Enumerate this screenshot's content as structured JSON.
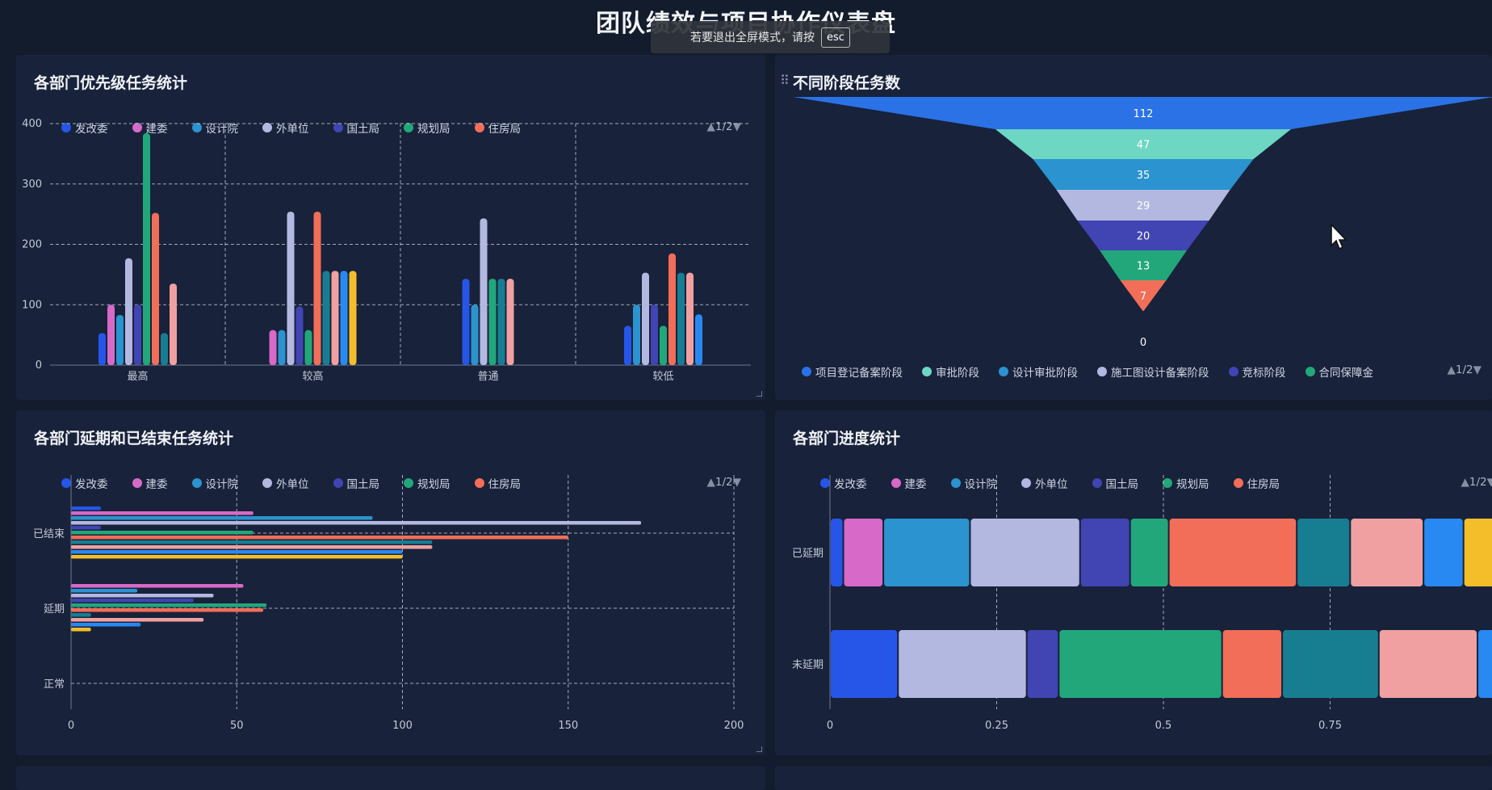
{
  "page": {
    "title": "团队绩效与项目协作仪表盘"
  },
  "fullscreen_notice": {
    "text": "若要退出全屏模式，请按",
    "key": "esc"
  },
  "colors": {
    "发改委": "#2556e8",
    "建委": "#d769c8",
    "设计院": "#2b93cf",
    "外单位": "#b3b8e0",
    "国土局": "#4144b3",
    "规划局": "#22a77a",
    "住房局": "#f26e58",
    "teal": "#177e92",
    "pink": "#f0a0a0",
    "blue": "#2989f2",
    "yellow": "#f4bd2a"
  },
  "legend_items": [
    {
      "label": "发改委",
      "color": "#2556e8"
    },
    {
      "label": "建委",
      "color": "#d769c8"
    },
    {
      "label": "设计院",
      "color": "#2b93cf"
    },
    {
      "label": "外单位",
      "color": "#b3b8e0"
    },
    {
      "label": "国土局",
      "color": "#4144b3"
    },
    {
      "label": "规划局",
      "color": "#22a77a"
    },
    {
      "label": "住房局",
      "color": "#f26e58"
    }
  ],
  "panels": {
    "priority": {
      "title": "各部门优先级任务统计",
      "pager": "1/2"
    },
    "funnel": {
      "title": "不同阶段任务数",
      "pager": "1/2",
      "legend": [
        {
          "label": "项目登记备案阶段",
          "color": "#2b72e6"
        },
        {
          "label": "审批阶段",
          "color": "#6dd7c4"
        },
        {
          "label": "设计审批阶段",
          "color": "#2b93cf"
        },
        {
          "label": "施工图设计备案阶段",
          "color": "#b3b8e0"
        },
        {
          "label": "竞标阶段",
          "color": "#4144b3"
        },
        {
          "label": "合同保障金",
          "color": "#22a77a"
        }
      ]
    },
    "delay": {
      "title": "各部门延期和已结束任务统计",
      "pager": "1/2"
    },
    "progress": {
      "title": "各部门进度统计",
      "pager": "1/2"
    }
  },
  "chart_data": [
    {
      "id": "priority",
      "type": "bar",
      "categories": [
        "最高",
        "较高",
        "普通",
        "较低"
      ],
      "ylim": [
        0,
        400
      ],
      "yticks": [
        0,
        100,
        200,
        300,
        400
      ],
      "grid": true,
      "legend_position": "top",
      "groups": [
        {
          "category": "最高",
          "bars": [
            {
              "color": "#2556e8",
              "value": 53
            },
            {
              "color": "#d769c8",
              "value": 100
            },
            {
              "color": "#2b93cf",
              "value": 83
            },
            {
              "color": "#b3b8e0",
              "value": 177
            },
            {
              "color": "#4144b3",
              "value": 100
            },
            {
              "color": "#22a77a",
              "value": 384
            },
            {
              "color": "#f26e58",
              "value": 252
            },
            {
              "color": "#177e92",
              "value": 53
            },
            {
              "color": "#f0a0a0",
              "value": 135
            }
          ]
        },
        {
          "category": "较高",
          "bars": [
            {
              "color": "#d769c8",
              "value": 58
            },
            {
              "color": "#2b93cf",
              "value": 58
            },
            {
              "color": "#b3b8e0",
              "value": 254
            },
            {
              "color": "#4144b3",
              "value": 97
            },
            {
              "color": "#22a77a",
              "value": 58
            },
            {
              "color": "#f26e58",
              "value": 254
            },
            {
              "color": "#177e92",
              "value": 156
            },
            {
              "color": "#f0a0a0",
              "value": 156
            },
            {
              "color": "#2989f2",
              "value": 156
            },
            {
              "color": "#f4bd2a",
              "value": 156
            }
          ]
        },
        {
          "category": "普通",
          "bars": [
            {
              "color": "#2556e8",
              "value": 143
            },
            {
              "color": "#2b93cf",
              "value": 100
            },
            {
              "color": "#b3b8e0",
              "value": 243
            },
            {
              "color": "#22a77a",
              "value": 143
            },
            {
              "color": "#177e92",
              "value": 143
            },
            {
              "color": "#f0a0a0",
              "value": 143
            }
          ]
        },
        {
          "category": "较低",
          "bars": [
            {
              "color": "#2556e8",
              "value": 65
            },
            {
              "color": "#2b93cf",
              "value": 100
            },
            {
              "color": "#b3b8e0",
              "value": 153
            },
            {
              "color": "#4144b3",
              "value": 100
            },
            {
              "color": "#22a77a",
              "value": 65
            },
            {
              "color": "#f26e58",
              "value": 185
            },
            {
              "color": "#177e92",
              "value": 153
            },
            {
              "color": "#f0a0a0",
              "value": 153
            },
            {
              "color": "#2989f2",
              "value": 84
            }
          ]
        }
      ]
    },
    {
      "id": "funnel",
      "type": "funnel",
      "values": [
        112,
        47,
        35,
        29,
        20,
        13,
        7,
        0
      ],
      "stage_colors": [
        "#2b72e6",
        "#6dd7c4",
        "#2b93cf",
        "#b3b8e0",
        "#4144b3",
        "#22a77a",
        "#f26e58"
      ]
    },
    {
      "id": "delay",
      "type": "bar",
      "orientation": "horizontal",
      "categories": [
        "已结束",
        "延期",
        "正常"
      ],
      "xlim": [
        0,
        200
      ],
      "xticks": [
        0,
        50,
        100,
        150,
        200
      ],
      "grid": true,
      "groups": [
        {
          "category": "已结束",
          "bars": [
            {
              "color": "#2556e8",
              "value": 9
            },
            {
              "color": "#d769c8",
              "value": 55
            },
            {
              "color": "#2b93cf",
              "value": 91
            },
            {
              "color": "#b3b8e0",
              "value": 172
            },
            {
              "color": "#4144b3",
              "value": 9
            },
            {
              "color": "#22a77a",
              "value": 55
            },
            {
              "color": "#f26e58",
              "value": 150
            },
            {
              "color": "#177e92",
              "value": 109
            },
            {
              "color": "#f0a0a0",
              "value": 109
            },
            {
              "color": "#2989f2",
              "value": 100
            },
            {
              "color": "#f4bd2a",
              "value": 100
            }
          ]
        },
        {
          "category": "延期",
          "bars": [
            {
              "color": "#d769c8",
              "value": 52
            },
            {
              "color": "#2b93cf",
              "value": 20
            },
            {
              "color": "#b3b8e0",
              "value": 43
            },
            {
              "color": "#4144b3",
              "value": 37
            },
            {
              "color": "#22a77a",
              "value": 59
            },
            {
              "color": "#f26e58",
              "value": 58
            },
            {
              "color": "#177e92",
              "value": 6
            },
            {
              "color": "#f0a0a0",
              "value": 40
            },
            {
              "color": "#2989f2",
              "value": 21
            },
            {
              "color": "#f4bd2a",
              "value": 6
            }
          ]
        },
        {
          "category": "正常",
          "bars": []
        }
      ]
    },
    {
      "id": "progress",
      "type": "bar",
      "orientation": "horizontal",
      "stacked": "percent",
      "categories": [
        "已延期",
        "未延期"
      ],
      "xticks": [
        "0",
        "0.25",
        "0.5",
        "0.75"
      ],
      "grid": true,
      "rows": [
        {
          "category": "已延期",
          "segments": [
            {
              "color": "#2556e8",
              "value": 0.02
            },
            {
              "color": "#d769c8",
              "value": 0.06
            },
            {
              "color": "#2b93cf",
              "value": 0.13
            },
            {
              "color": "#b3b8e0",
              "value": 0.165
            },
            {
              "color": "#4144b3",
              "value": 0.075
            },
            {
              "color": "#22a77a",
              "value": 0.058
            },
            {
              "color": "#f26e58",
              "value": 0.192
            },
            {
              "color": "#177e92",
              "value": 0.08
            },
            {
              "color": "#f0a0a0",
              "value": 0.11
            },
            {
              "color": "#2989f2",
              "value": 0.06
            },
            {
              "color": "#f4bd2a",
              "value": 0.05
            }
          ]
        },
        {
          "category": "未延期",
          "segments": [
            {
              "color": "#2556e8",
              "value": 0.102
            },
            {
              "color": "#b3b8e0",
              "value": 0.193
            },
            {
              "color": "#4144b3",
              "value": 0.048
            },
            {
              "color": "#22a77a",
              "value": 0.245
            },
            {
              "color": "#f26e58",
              "value": 0.09
            },
            {
              "color": "#177e92",
              "value": 0.145
            },
            {
              "color": "#f0a0a0",
              "value": 0.148
            },
            {
              "color": "#2989f2",
              "value": 0.029
            }
          ]
        }
      ]
    }
  ]
}
